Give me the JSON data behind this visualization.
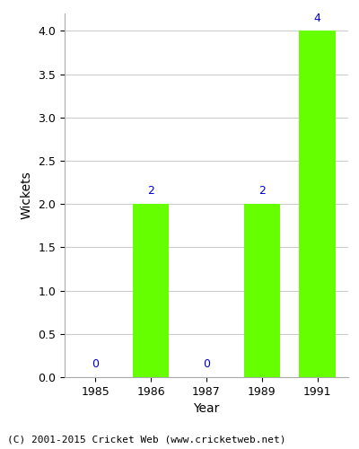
{
  "years": [
    "1985",
    "1986",
    "1987",
    "1989",
    "1991"
  ],
  "wickets": [
    0,
    2,
    0,
    2,
    4
  ],
  "bar_color": "#66ff00",
  "bar_edgecolor": "#66ff00",
  "xlabel": "Year",
  "ylabel": "Wickets",
  "ylim": [
    0,
    4.2
  ],
  "yticks": [
    0.0,
    0.5,
    1.0,
    1.5,
    2.0,
    2.5,
    3.0,
    3.5,
    4.0
  ],
  "label_color": "#0000cc",
  "label_fontsize": 9,
  "axis_label_fontsize": 10,
  "tick_fontsize": 9,
  "footer_text": "(C) 2001-2015 Cricket Web (www.cricketweb.net)",
  "footer_fontsize": 8,
  "bg_color": "#ffffff",
  "grid_color": "#cccccc",
  "bar_width": 0.65
}
